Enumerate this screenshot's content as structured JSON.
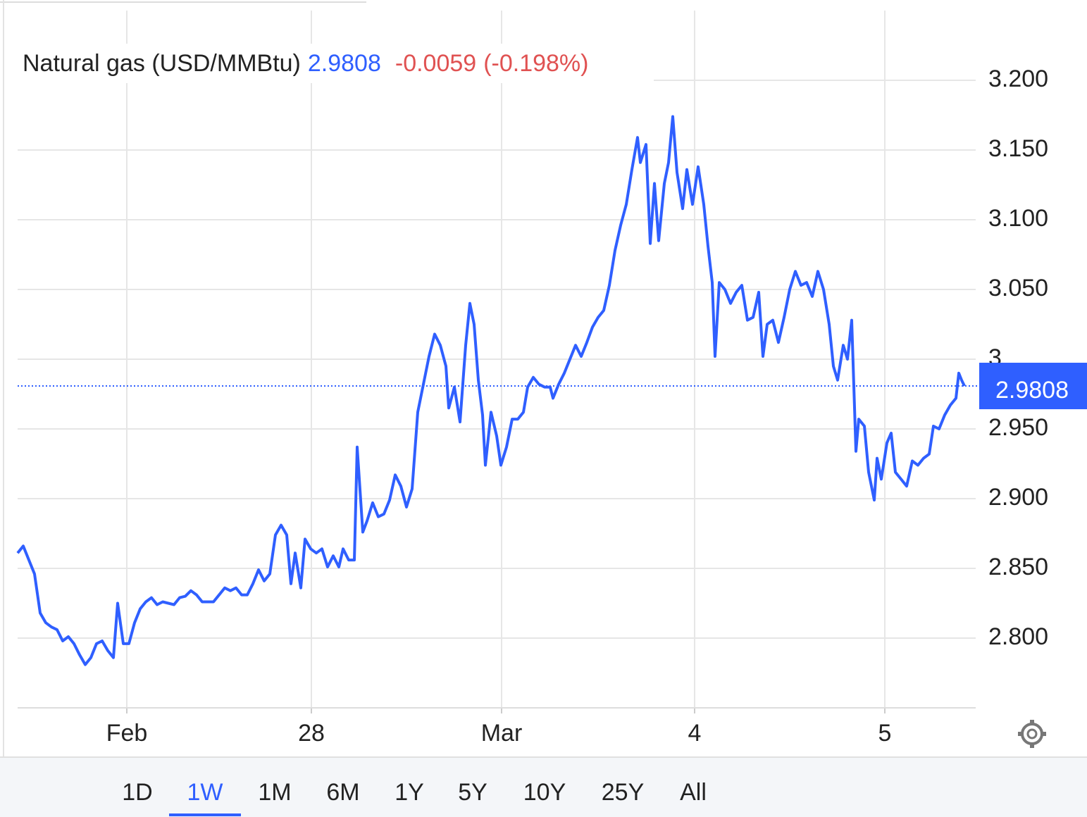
{
  "chart_data": {
    "type": "line",
    "title": "Natural gas (USD/MMBtu)",
    "change": -0.0059,
    "change_percent": "(-0.198%)",
    "x": [
      0,
      8,
      16,
      24,
      32,
      40,
      48,
      56,
      64,
      72,
      80,
      88,
      96,
      104,
      112,
      120,
      128,
      136,
      142,
      150,
      158,
      166,
      174,
      182,
      190,
      198,
      206,
      214,
      222,
      230,
      238,
      246,
      254,
      262,
      270,
      278,
      286,
      294,
      302,
      310,
      318,
      326,
      334,
      342,
      350,
      358,
      366,
      374,
      382,
      388,
      394,
      402,
      408,
      416,
      424,
      432,
      440,
      448,
      456,
      462,
      470,
      478,
      482,
      490,
      496,
      504,
      512,
      520,
      528,
      536,
      544,
      552,
      560,
      568,
      576,
      584,
      592,
      600,
      608,
      612,
      620,
      628,
      636,
      642,
      648,
      654,
      660,
      664,
      672,
      680,
      686,
      694,
      702,
      710,
      718,
      724,
      732,
      740,
      748,
      756,
      760,
      768,
      776,
      784,
      792,
      800,
      808,
      816,
      824,
      832,
      840,
      848,
      856,
      864,
      872,
      880,
      884,
      892,
      898,
      904,
      910,
      918,
      924,
      930,
      936,
      944,
      950,
      958,
      966,
      974,
      980,
      986,
      990,
      996,
      1004,
      1012,
      1020,
      1028,
      1036,
      1044,
      1052,
      1058,
      1064,
      1072,
      1080,
      1088,
      1096,
      1104,
      1112,
      1120,
      1128,
      1136,
      1144,
      1152,
      1158,
      1164,
      1172,
      1178,
      1184,
      1190,
      1194,
      1202,
      1208,
      1216,
      1220,
      1226,
      1234,
      1240,
      1246,
      1254,
      1262,
      1270,
      1278,
      1286,
      1294,
      1300,
      1308,
      1316,
      1324,
      1332,
      1336,
      1340,
      1344
    ],
    "series": [
      {
        "color": "#2f5fff",
        "values": [
          2.861,
          2.866,
          2.856,
          2.846,
          2.818,
          2.811,
          2.808,
          2.806,
          2.798,
          2.801,
          2.796,
          2.788,
          2.781,
          2.786,
          2.796,
          2.798,
          2.791,
          2.786,
          2.825,
          2.796,
          2.796,
          2.811,
          2.821,
          2.826,
          2.829,
          2.824,
          2.826,
          2.825,
          2.824,
          2.829,
          2.83,
          2.834,
          2.831,
          2.826,
          2.826,
          2.826,
          2.831,
          2.836,
          2.834,
          2.836,
          2.831,
          2.831,
          2.839,
          2.849,
          2.841,
          2.846,
          2.874,
          2.881,
          2.874,
          2.839,
          2.861,
          2.836,
          2.871,
          2.864,
          2.861,
          2.864,
          2.851,
          2.859,
          2.851,
          2.864,
          2.856,
          2.856,
          2.937,
          2.876,
          2.884,
          2.897,
          2.887,
          2.889,
          2.899,
          2.917,
          2.909,
          2.894,
          2.907,
          2.962,
          2.982,
          3.002,
          3.018,
          3.01,
          2.995,
          2.965,
          2.98,
          2.955,
          3.01,
          3.04,
          3.025,
          2.985,
          2.96,
          2.924,
          2.962,
          2.945,
          2.924,
          2.937,
          2.957,
          2.957,
          2.962,
          2.98,
          2.987,
          2.982,
          2.98,
          2.98,
          2.972,
          2.982,
          2.99,
          3.0,
          3.01,
          3.002,
          3.012,
          3.023,
          3.03,
          3.035,
          3.053,
          3.078,
          3.096,
          3.111,
          3.136,
          3.159,
          3.141,
          3.154,
          3.083,
          3.126,
          3.085,
          3.126,
          3.141,
          3.174,
          3.134,
          3.108,
          3.136,
          3.111,
          3.138,
          3.111,
          3.081,
          3.055,
          3.002,
          3.055,
          3.05,
          3.04,
          3.048,
          3.053,
          3.028,
          3.03,
          3.048,
          3.002,
          3.025,
          3.028,
          3.012,
          3.03,
          3.05,
          3.063,
          3.053,
          3.055,
          3.045,
          3.063,
          3.05,
          3.025,
          2.995,
          2.985,
          3.01,
          3.0,
          3.028,
          2.934,
          2.957,
          2.952,
          2.919,
          2.899,
          2.929,
          2.914,
          2.94,
          2.947,
          2.919,
          2.914,
          2.909,
          2.927,
          2.924,
          2.929,
          2.932,
          2.952,
          2.95,
          2.96,
          2.967,
          2.972,
          2.99,
          2.985,
          2.9808
        ]
      }
    ],
    "xlim": [
      0,
      1360
    ],
    "xticks": [
      {
        "value": 155,
        "label": "Feb"
      },
      {
        "value": 417,
        "label": "28"
      },
      {
        "value": 687,
        "label": "Mar"
      },
      {
        "value": 961,
        "label": "4"
      },
      {
        "value": 1231,
        "label": "5"
      }
    ],
    "ylim": [
      2.75,
      3.25
    ],
    "yticks": [
      {
        "value": 2.8,
        "label": "2.800"
      },
      {
        "value": 2.85,
        "label": "2.850"
      },
      {
        "value": 2.9,
        "label": "2.900"
      },
      {
        "value": 2.95,
        "label": "2.950"
      },
      3,
      {
        "value": 3.05,
        "label": "3.050"
      },
      {
        "value": 3.1,
        "label": "3.100"
      },
      {
        "value": 3.15,
        "label": "3.150"
      },
      {
        "value": 3.2,
        "label": "3.200"
      }
    ],
    "grid": true,
    "ranges": [
      {
        "label": "1D"
      },
      {
        "label": "1W",
        "active": true
      },
      {
        "label": "1M"
      },
      {
        "label": "6M"
      },
      {
        "label": "1Y"
      },
      {
        "label": "5Y"
      },
      {
        "label": "10Y"
      },
      {
        "label": "25Y"
      },
      {
        "label": "All"
      }
    ]
  }
}
